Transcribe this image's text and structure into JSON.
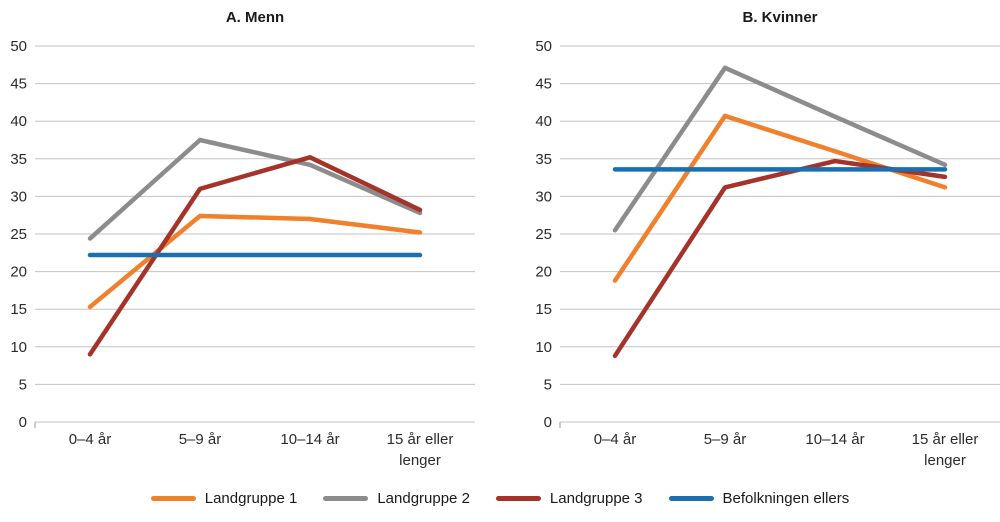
{
  "legend": {
    "items": [
      {
        "label": "Landgruppe 1",
        "color": "#F0802C"
      },
      {
        "label": "Landgruppe 2",
        "color": "#8C8C8C"
      },
      {
        "label": "Landgruppe 3",
        "color": "#A5332A"
      },
      {
        "label": "Befolkningen ellers",
        "color": "#1B6EB0"
      }
    ]
  },
  "chart_data": [
    {
      "type": "line",
      "title": "A. Menn",
      "categories": [
        "0–4 år",
        "5–9 år",
        "10–14 år",
        "15 år eller\nlenger"
      ],
      "series": [
        {
          "name": "Landgruppe 1",
          "color": "#F0802C",
          "values": [
            15.3,
            27.4,
            27.0,
            25.2
          ]
        },
        {
          "name": "Landgruppe 2",
          "color": "#8C8C8C",
          "values": [
            24.4,
            37.5,
            34.2,
            27.8
          ]
        },
        {
          "name": "Landgruppe 3",
          "color": "#A5332A",
          "values": [
            9.0,
            31.0,
            35.2,
            28.2
          ]
        },
        {
          "name": "Befolkningen ellers",
          "color": "#1B6EB0",
          "values": [
            22.2,
            22.2,
            22.2,
            22.2
          ]
        }
      ],
      "ylim": [
        0,
        50
      ],
      "ytick_step": 5,
      "grid": true,
      "legend_position": "bottom-shared"
    },
    {
      "type": "line",
      "title": "B. Kvinner",
      "categories": [
        "0–4 år",
        "5–9 år",
        "10–14 år",
        "15 år eller\nlenger"
      ],
      "series": [
        {
          "name": "Landgruppe 1",
          "color": "#F0802C",
          "values": [
            18.8,
            40.7,
            36.0,
            31.2
          ]
        },
        {
          "name": "Landgruppe 2",
          "color": "#8C8C8C",
          "values": [
            25.5,
            47.1,
            40.6,
            34.2
          ]
        },
        {
          "name": "Landgruppe 3",
          "color": "#A5332A",
          "values": [
            8.8,
            31.2,
            34.7,
            32.6
          ]
        },
        {
          "name": "Befolkningen ellers",
          "color": "#1B6EB0",
          "values": [
            33.6,
            33.6,
            33.6,
            33.6
          ]
        }
      ],
      "ylim": [
        0,
        50
      ],
      "ytick_step": 5,
      "grid": true,
      "legend_position": "bottom-shared"
    }
  ],
  "styles": {
    "grid_color": "#C3C3C3",
    "axis_tick_color": "#999999",
    "tick_label_color": "#2b2b2b",
    "title_color": "#1a1a1a",
    "background": "#ffffff",
    "line_width": 4.5
  }
}
